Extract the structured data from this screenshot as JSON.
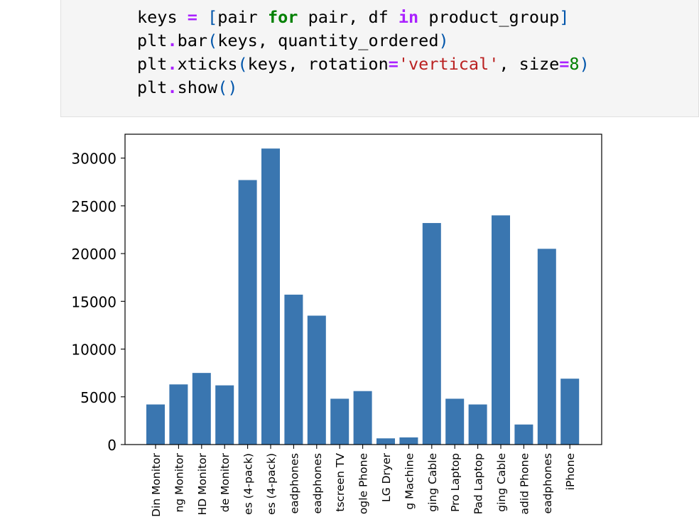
{
  "code_cell": {
    "lines": [
      [
        {
          "t": "keys ",
          "c": ""
        },
        {
          "t": "=",
          "c": "op"
        },
        {
          "t": " ",
          "c": ""
        },
        {
          "t": "[",
          "c": "br"
        },
        {
          "t": "pair ",
          "c": ""
        },
        {
          "t": "for",
          "c": "kw"
        },
        {
          "t": " pair, df ",
          "c": ""
        },
        {
          "t": "in",
          "c": "op"
        },
        {
          "t": " product_group",
          "c": ""
        },
        {
          "t": "]",
          "c": "br"
        }
      ],
      [
        {
          "t": "plt",
          "c": ""
        },
        {
          "t": ".",
          "c": "op"
        },
        {
          "t": "bar",
          "c": ""
        },
        {
          "t": "(",
          "c": "br"
        },
        {
          "t": "keys, quantity_ordered",
          "c": ""
        },
        {
          "t": ")",
          "c": "br"
        }
      ],
      [
        {
          "t": "plt",
          "c": ""
        },
        {
          "t": ".",
          "c": "op"
        },
        {
          "t": "xticks",
          "c": ""
        },
        {
          "t": "(",
          "c": "br"
        },
        {
          "t": "keys, rotation",
          "c": ""
        },
        {
          "t": "=",
          "c": "op"
        },
        {
          "t": "'vertical'",
          "c": "str"
        },
        {
          "t": ", size",
          "c": ""
        },
        {
          "t": "=",
          "c": "op"
        },
        {
          "t": "8",
          "c": "num"
        },
        {
          "t": ")",
          "c": "br"
        }
      ],
      [
        {
          "t": "plt",
          "c": ""
        },
        {
          "t": ".",
          "c": "op"
        },
        {
          "t": "show",
          "c": ""
        },
        {
          "t": "()",
          "c": "br"
        }
      ]
    ]
  },
  "chart_data": {
    "type": "bar",
    "title": "",
    "xlabel": "",
    "ylabel": "",
    "ylim": [
      0,
      32500
    ],
    "yticks": [
      0,
      5000,
      10000,
      15000,
      20000,
      25000,
      30000
    ],
    "grid": false,
    "bar_color": "#3a76b0",
    "categories": [
      "Din Monitor",
      "ng Monitor",
      "HD Monitor",
      "de Monitor",
      "es (4-pack)",
      "es (4-pack)",
      "eadphones",
      "eadphones",
      "tscreen TV",
      "ogle Phone",
      "LG Dryer",
      "g Machine",
      "ging Cable",
      "Pro Laptop",
      "Pad Laptop",
      "ging Cable",
      "adid Phone",
      "eadphones",
      "iPhone"
    ],
    "values": [
      4200,
      6300,
      7500,
      6200,
      27700,
      31000,
      15700,
      13500,
      4800,
      5600,
      650,
      750,
      23200,
      4800,
      4200,
      24000,
      2100,
      20500,
      6900
    ]
  }
}
